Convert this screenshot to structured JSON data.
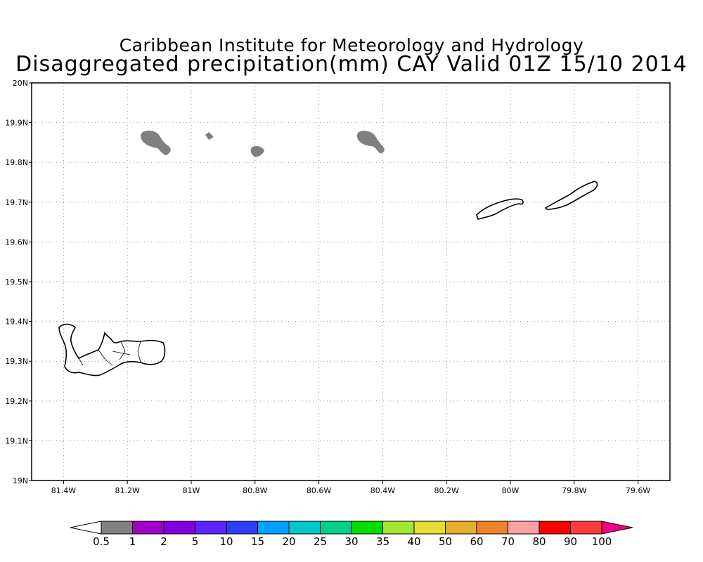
{
  "title": {
    "line1": "Caribbean Institute for Meteorology and Hydrology",
    "line2": "Disaggregated precipitation(mm) CAY Valid 01Z 15/10 2014"
  },
  "map": {
    "lon_range": [
      -81.5,
      -79.5
    ],
    "lat_range": [
      19.0,
      20.0
    ],
    "x_ticks": [
      {
        "value": -81.4,
        "label": "81.4W"
      },
      {
        "value": -81.2,
        "label": "81.2W"
      },
      {
        "value": -81.0,
        "label": "81W"
      },
      {
        "value": -80.8,
        "label": "80.8W"
      },
      {
        "value": -80.6,
        "label": "80.6W"
      },
      {
        "value": -80.4,
        "label": "80.4W"
      },
      {
        "value": -80.2,
        "label": "80.2W"
      },
      {
        "value": -80.0,
        "label": "80W"
      },
      {
        "value": -79.8,
        "label": "79.8W"
      },
      {
        "value": -79.6,
        "label": "79.6W"
      }
    ],
    "y_ticks": [
      {
        "value": 19.0,
        "label": "19N"
      },
      {
        "value": 19.1,
        "label": "19.1N"
      },
      {
        "value": 19.2,
        "label": "19.2N"
      },
      {
        "value": 19.3,
        "label": "19.3N"
      },
      {
        "value": 19.4,
        "label": "19.4N"
      },
      {
        "value": 19.5,
        "label": "19.5N"
      },
      {
        "value": 19.6,
        "label": "19.6N"
      },
      {
        "value": 19.7,
        "label": "19.7N"
      },
      {
        "value": 19.8,
        "label": "19.8N"
      },
      {
        "value": 19.9,
        "label": "19.9N"
      },
      {
        "value": 20.0,
        "label": "20N"
      }
    ],
    "precip_color": "#808080"
  },
  "colorbar": {
    "labels": [
      "0.5",
      "1",
      "2",
      "5",
      "10",
      "15",
      "20",
      "25",
      "30",
      "35",
      "40",
      "50",
      "60",
      "70",
      "80",
      "90",
      "100"
    ],
    "colors": [
      "#808080",
      "#a000c8",
      "#8200dc",
      "#5a28ff",
      "#2d3cf5",
      "#00a0ff",
      "#00c8c8",
      "#00d28c",
      "#00dc00",
      "#a0e632",
      "#e6dc32",
      "#e6af2d",
      "#f08228",
      "#faa0a0",
      "#ff0000",
      "#fa3c3c"
    ],
    "low_color": "#ffffff",
    "high_color": "#f00082"
  }
}
